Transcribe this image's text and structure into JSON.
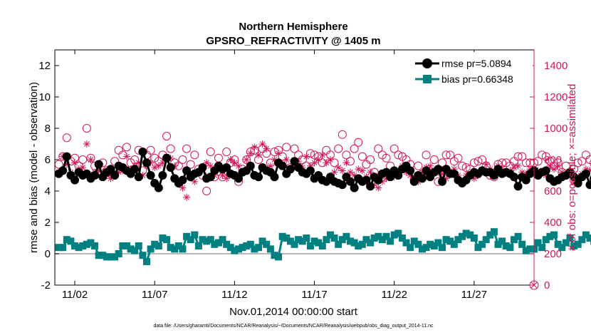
{
  "chart_data": {
    "type": "line",
    "title": "Northern Hemisphere",
    "subtitle": "GPSRO_REFRACTIVITY @ 1405 m",
    "xlabel": "Nov.01,2014 00:00:00 start",
    "ylabel_left": "rmse and bias (model - observation)",
    "ylabel_right": "# of obs: o=possible; ×=assimilated",
    "footnote": "data file: /Users/gharamti/Documents/NCAR/Reanalysis/~/Documents/NCAR/Reanalysis/webpub/obs_diag_output_2014-11.nc",
    "xlim": [
      0.75,
      30.75
    ],
    "ylim_left": [
      -2,
      13
    ],
    "ylim_right": [
      0,
      1500
    ],
    "x_ticks": [
      {
        "value": 2,
        "label": "11/02"
      },
      {
        "value": 7,
        "label": "11/07"
      },
      {
        "value": 12,
        "label": "11/12"
      },
      {
        "value": 17,
        "label": "11/17"
      },
      {
        "value": 22,
        "label": "11/22"
      },
      {
        "value": 27,
        "label": "11/27"
      }
    ],
    "y_ticks_left": [
      {
        "value": -2,
        "label": "-2"
      },
      {
        "value": 0,
        "label": "0"
      },
      {
        "value": 2,
        "label": "2"
      },
      {
        "value": 4,
        "label": "4"
      },
      {
        "value": 6,
        "label": "6"
      },
      {
        "value": 8,
        "label": "8"
      },
      {
        "value": 10,
        "label": "10"
      },
      {
        "value": 12,
        "label": "12"
      }
    ],
    "y_ticks_right": [
      {
        "value": 0,
        "label": "0"
      },
      {
        "value": 200,
        "label": "200"
      },
      {
        "value": 400,
        "label": "400"
      },
      {
        "value": 600,
        "label": "600"
      },
      {
        "value": 800,
        "label": "800"
      },
      {
        "value": 1000,
        "label": "1000"
      },
      {
        "value": 1200,
        "label": "1200"
      },
      {
        "value": 1400,
        "label": "1400"
      }
    ],
    "interval_days": 0.25,
    "x_start": 1.0,
    "series": [
      {
        "name": "rmse pr=5.0894",
        "axis": "left",
        "color": "#000000",
        "marker": "circle",
        "values": [
          5.1,
          5.3,
          6.2,
          5.0,
          4.7,
          5.2,
          5.0,
          5.1,
          4.8,
          5.0,
          5.7,
          4.9,
          5.2,
          5.4,
          5.0,
          5.6,
          5.5,
          5.3,
          5.1,
          5.4,
          4.9,
          6.5,
          5.8,
          5.0,
          4.5,
          4.2,
          5.0,
          6.1,
          5.5,
          4.8,
          4.5,
          4.7,
          5.3,
          4.9,
          5.1,
          5.2,
          5.5,
          4.8,
          4.9,
          5.3,
          5.6,
          5.4,
          5.5,
          5.1,
          5.0,
          4.8,
          5.2,
          5.3,
          5.6,
          5.0,
          4.9,
          5.5,
          5.3,
          5.2,
          4.9,
          5.8,
          5.6,
          5.1,
          5.4,
          5.9,
          5.5,
          5.2,
          5.1,
          5.3,
          4.8,
          5.0,
          4.7,
          4.6,
          4.9,
          4.6,
          4.5,
          4.4,
          4.9,
          4.6,
          4.2,
          4.8,
          4.6,
          4.7,
          4.3,
          4.9,
          4.7,
          5.1,
          5.2,
          4.9,
          5.3,
          5.0,
          5.4,
          5.6,
          5.3,
          4.6,
          5.0,
          4.8,
          5.3,
          4.9,
          5.2,
          5.4,
          4.6,
          5.4,
          5.1,
          5.1,
          4.7,
          4.5,
          4.7,
          5.0,
          5.2,
          5.1,
          5.3,
          5.2,
          5.2,
          5.0,
          5.4,
          5.1,
          5.2,
          5.1,
          4.9,
          4.3,
          4.9,
          4.7,
          5.1,
          5.3,
          5.0,
          5.2,
          5.3,
          4.8,
          4.6,
          4.7,
          4.9,
          5.0,
          5.2,
          4.9,
          4.5,
          4.9,
          5.1,
          4.4,
          4.8,
          5.5,
          5.1,
          5.0,
          5.2,
          4.8,
          5.0,
          4.9,
          5.2,
          4.8,
          5.3,
          5.5,
          5.1,
          5.2,
          5.4,
          4.9,
          5.0,
          5.2,
          5.4,
          5.1,
          5.1,
          5.3,
          5.2,
          5.0,
          5.1
        ]
      },
      {
        "name": "bias pr=0.66348",
        "axis": "left",
        "color": "#008080",
        "marker": "square",
        "values": [
          0.4,
          0.4,
          0.9,
          0.8,
          0.5,
          0.4,
          0.5,
          0.6,
          0.7,
          0.5,
          -0.1,
          -0.1,
          -0.2,
          -0.2,
          -0.2,
          0.0,
          0.5,
          0.5,
          0.3,
          0.2,
          0.5,
          -0.1,
          -0.5,
          0.3,
          0.6,
          0.5,
          1.0,
          0.9,
          0.4,
          0.3,
          0.5,
          0.3,
          1.1,
          0.9,
          1.2,
          0.5,
          0.9,
          0.8,
          0.9,
          0.6,
          0.7,
          0.9,
          0.6,
          0.4,
          0.2,
          0.3,
          0.4,
          0.5,
          0.6,
          0.3,
          0.4,
          0.8,
          0.6,
          0.3,
          -0.1,
          -0.2,
          1.1,
          1.0,
          0.8,
          0.6,
          0.9,
          0.8,
          1.0,
          0.5,
          0.8,
          0.7,
          0.5,
          0.9,
          1.2,
          1.0,
          0.6,
          0.9,
          1.1,
          0.8,
          0.7,
          0.5,
          0.6,
          0.9,
          0.7,
          1.0,
          1.1,
          0.9,
          1.1,
          0.8,
          1.2,
          1.3,
          1.0,
          0.7,
          0.4,
          0.8,
          0.6,
          0.3,
          0.4,
          0.6,
          0.5,
          0.7,
          0.4,
          0.9,
          0.8,
          0.6,
          0.9,
          1.1,
          1.3,
          1.2,
          1.0,
          0.4,
          0.6,
          0.9,
          1.2,
          1.4,
          0.6,
          0.8,
          0.5,
          0.4,
          0.9,
          1.1,
          0.6,
          0.2,
          0.3,
          0.3,
          0.7,
          0.4,
          0.9,
          1.1,
          1.2,
          0.6,
          0.4,
          0.7,
          1.0,
          0.5,
          0.6,
          0.9,
          1.2,
          1.0,
          0.8,
          0.7,
          0.5,
          0.6,
          0.4,
          0.7,
          0.5,
          0.9,
          0.8,
          1.0,
          1.2,
          0.9,
          0.8,
          1.3,
          1.7,
          1.5,
          1.3,
          1.6,
          1.2,
          1.5,
          1.0,
          0.9,
          1.2,
          1.1,
          0.7,
          0.3
        ]
      },
      {
        "name": "obs possible",
        "axis": "right",
        "color": "#d4145a",
        "marker": "open-circle",
        "values": [
          770,
          820,
          940,
          790,
          810,
          760,
          800,
          1000,
          810,
          760,
          770,
          780,
          730,
          720,
          790,
          860,
          830,
          880,
          780,
          800,
          860,
          730,
          830,
          860,
          810,
          790,
          830,
          950,
          870,
          780,
          760,
          800,
          870,
          770,
          830,
          740,
          700,
          600,
          850,
          690,
          810,
          690,
          850,
          780,
          800,
          660,
          740,
          800,
          850,
          860,
          800,
          870,
          840,
          780,
          850,
          860,
          820,
          880,
          750,
          870,
          830,
          800,
          760,
          840,
          830,
          820,
          780,
          860,
          830,
          780,
          870,
          960,
          830,
          790,
          870,
          910,
          820,
          770,
          800,
          720,
          870,
          830,
          810,
          760,
          870,
          830,
          820,
          800,
          770,
          670,
          760,
          710,
          830,
          700,
          800,
          660,
          780,
          830,
          830,
          790,
          810,
          760,
          750,
          740,
          780,
          790,
          800,
          760,
          700,
          690,
          770,
          780,
          780,
          760,
          790,
          820,
          820,
          780,
          780,
          780,
          790,
          830,
          820,
          790,
          760,
          780,
          720,
          760,
          720,
          740,
          780,
          790,
          830,
          800,
          780,
          720,
          790,
          780,
          740,
          770,
          820,
          800,
          840,
          810,
          830,
          770,
          810,
          830,
          770,
          790,
          740,
          820,
          780,
          780,
          790,
          790,
          750,
          730,
          770,
          720
        ]
      },
      {
        "name": "obs assimilated",
        "axis": "right",
        "color": "#d4145a",
        "marker": "asterisk",
        "values": [
          720,
          820,
          770,
          720,
          780,
          740,
          750,
          900,
          800,
          720,
          730,
          720,
          700,
          680,
          720,
          720,
          730,
          820,
          740,
          760,
          780,
          700,
          760,
          780,
          750,
          760,
          780,
          820,
          810,
          760,
          650,
          620,
          560,
          700,
          660,
          720,
          740,
          780,
          760,
          700,
          740,
          700,
          680,
          800,
          780,
          760,
          720,
          800,
          840,
          880,
          830,
          900,
          870,
          760,
          800,
          840,
          770,
          800,
          730,
          770,
          790,
          750,
          820,
          760,
          780,
          800,
          830,
          780,
          800,
          720,
          750,
          730,
          780,
          720,
          700,
          740,
          730,
          690,
          720,
          640,
          620,
          660,
          680,
          720,
          690,
          700,
          760,
          720,
          700,
          690,
          660,
          720,
          750,
          760,
          730,
          720,
          710,
          680,
          720,
          740,
          700,
          660,
          700,
          700,
          680,
          700,
          720,
          770,
          740,
          700,
          760,
          740,
          720,
          730,
          750,
          760,
          720,
          710,
          740,
          720,
          730,
          720,
          700,
          760,
          740,
          760,
          720,
          700,
          720,
          650,
          670,
          710,
          740,
          730,
          760,
          720,
          680,
          620,
          700,
          760,
          740,
          750,
          780,
          780,
          760,
          740,
          770,
          740,
          760,
          800,
          770,
          750,
          790,
          740,
          770,
          720,
          710,
          730,
          760,
          700
        ]
      }
    ]
  }
}
